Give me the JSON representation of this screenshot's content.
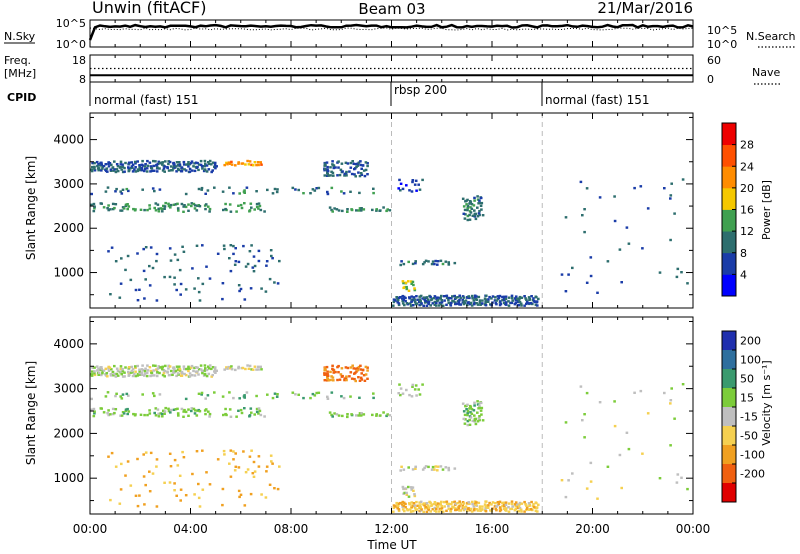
{
  "header": {
    "radar": "Unwin (fitACF)",
    "beam": "Beam 03",
    "date": "21/Mar/2016"
  },
  "noise_panel": {
    "left_label": "N.Sky",
    "left_ticks": [
      "10^5",
      "10^0"
    ],
    "right_ticks": [
      "10^5",
      "10^0"
    ],
    "right_label": "N.Search"
  },
  "freq_panel": {
    "left_label_top": "Freq.",
    "left_label_bottom": "[MHz]",
    "left_ticks": [
      "18",
      "8"
    ],
    "right_ticks": [
      "60",
      "0"
    ],
    "right_label": "Nave",
    "freq_level_mhz": 10.5,
    "nave_level": 30
  },
  "cpid": {
    "label": "CPID",
    "segments": [
      {
        "name": "normal (fast) 151",
        "start_h": 0,
        "end_h": 12
      },
      {
        "name": "rbsp 200",
        "start_h": 12,
        "end_h": 18
      },
      {
        "name": "normal (fast) 151",
        "start_h": 18,
        "end_h": 24
      }
    ]
  },
  "axes": {
    "ylabel": "Slant Range [km]",
    "xlabel": "Time UT",
    "y_ticks": [
      "1000",
      "2000",
      "3000",
      "4000"
    ],
    "x_ticks": [
      "00:00",
      "04:00",
      "08:00",
      "12:00",
      "16:00",
      "20:00",
      "00:00"
    ]
  },
  "power_colorbar": {
    "label": "Power [dB]",
    "ticks": [
      "4",
      "8",
      "12",
      "16",
      "20",
      "24",
      "28"
    ],
    "colors": [
      "#0000ff",
      "#1a3ca8",
      "#2d6e6e",
      "#40a050",
      "#f5c800",
      "#ff8c00",
      "#ff5000",
      "#ee0000"
    ]
  },
  "velocity_colorbar": {
    "label": "Velocity [m s⁻¹]",
    "ticks": [
      "200",
      "100",
      "50",
      "15",
      "-15",
      "-50",
      "-100",
      "-200"
    ],
    "colors": [
      "#1f2fae",
      "#2e6f9e",
      "#3a9a6e",
      "#7ccc3a",
      "#bfbfbf",
      "#f5d050",
      "#f0a020",
      "#f06010",
      "#e00000"
    ]
  },
  "chart_data": [
    {
      "type": "heatmap",
      "panel": "power",
      "xlabel": "Time UT",
      "ylabel": "Slant Range [km]",
      "xlim": [
        0,
        24
      ],
      "ylim": [
        200,
        4600
      ],
      "colorbar": "Power [dB]",
      "colorbar_range": [
        0,
        32
      ],
      "regions": [
        {
          "x": [
            0,
            5
          ],
          "y": [
            3250,
            3500
          ],
          "value": 8,
          "density": 0.8
        },
        {
          "x": [
            5.3,
            6.8
          ],
          "y": [
            3400,
            3500
          ],
          "value": 22,
          "density": 0.8
        },
        {
          "x": [
            0,
            7
          ],
          "y": [
            2350,
            2550
          ],
          "value": 12,
          "density": 0.35
        },
        {
          "x": [
            0,
            11.9
          ],
          "y": [
            2750,
            2900
          ],
          "value": 10,
          "density": 0.2
        },
        {
          "x": [
            9.2,
            11
          ],
          "y": [
            3150,
            3500
          ],
          "value": 8,
          "density": 0.55
        },
        {
          "x": [
            9.5,
            11.9
          ],
          "y": [
            2350,
            2450
          ],
          "value": 12,
          "density": 0.6
        },
        {
          "x": [
            0.5,
            7.5
          ],
          "y": [
            1000,
            1600
          ],
          "value": 8,
          "density": 0.07
        },
        {
          "x": [
            0.5,
            7.5
          ],
          "y": [
            350,
            900
          ],
          "value": 8,
          "density": 0.05
        },
        {
          "x": [
            12,
            17.8
          ],
          "y": [
            230,
            460
          ],
          "value": 8,
          "density": 0.85
        },
        {
          "x": [
            14.8,
            15.6
          ],
          "y": [
            2150,
            2700
          ],
          "value": 10,
          "density": 0.5
        },
        {
          "x": [
            12.2,
            13.2
          ],
          "y": [
            2800,
            3100
          ],
          "value": 6,
          "density": 0.3
        },
        {
          "x": [
            12.3,
            14.5
          ],
          "y": [
            1150,
            1250
          ],
          "value": 10,
          "density": 0.4
        },
        {
          "x": [
            12.4,
            12.9
          ],
          "y": [
            550,
            800
          ],
          "value": 16,
          "density": 0.8
        },
        {
          "x": [
            18,
            23.8
          ],
          "y": [
            300,
            3100
          ],
          "value": 8,
          "density": 0.012
        }
      ]
    },
    {
      "type": "heatmap",
      "panel": "velocity",
      "xlabel": "Time UT",
      "ylabel": "Slant Range [km]",
      "xlim": [
        0,
        24
      ],
      "ylim": [
        200,
        4600
      ],
      "colorbar": "Velocity [m s⁻¹]",
      "colorbar_range": [
        -200,
        200
      ],
      "regions": [
        {
          "x": [
            0,
            5
          ],
          "y": [
            3250,
            3500
          ],
          "value": 5,
          "density": 0.8
        },
        {
          "x": [
            5.3,
            6.8
          ],
          "y": [
            3400,
            3500
          ],
          "value": -5,
          "density": 0.8
        },
        {
          "x": [
            0,
            7
          ],
          "y": [
            2350,
            2550
          ],
          "value": 30,
          "density": 0.35
        },
        {
          "x": [
            0,
            11.9
          ],
          "y": [
            2750,
            2900
          ],
          "value": 40,
          "density": 0.2
        },
        {
          "x": [
            9.2,
            11
          ],
          "y": [
            3150,
            3500
          ],
          "value": -110,
          "density": 0.55
        },
        {
          "x": [
            9.5,
            11.9
          ],
          "y": [
            2350,
            2450
          ],
          "value": 30,
          "density": 0.6
        },
        {
          "x": [
            0.5,
            7.5
          ],
          "y": [
            1000,
            1600
          ],
          "value": -60,
          "density": 0.07
        },
        {
          "x": [
            0.5,
            7.5
          ],
          "y": [
            350,
            900
          ],
          "value": -60,
          "density": 0.05
        },
        {
          "x": [
            12,
            17.8
          ],
          "y": [
            230,
            460
          ],
          "value": -40,
          "density": 0.85
        },
        {
          "x": [
            14.8,
            15.6
          ],
          "y": [
            2150,
            2700
          ],
          "value": 30,
          "density": 0.5
        },
        {
          "x": [
            12.2,
            13.2
          ],
          "y": [
            2800,
            3100
          ],
          "value": 20,
          "density": 0.3
        },
        {
          "x": [
            12.3,
            14.5
          ],
          "y": [
            1150,
            1250
          ],
          "value": 0,
          "density": 0.4
        },
        {
          "x": [
            12.4,
            12.9
          ],
          "y": [
            550,
            800
          ],
          "value": 0,
          "density": 0.8
        },
        {
          "x": [
            18,
            23.8
          ],
          "y": [
            300,
            3100
          ],
          "value": 0,
          "density": 0.012
        }
      ]
    }
  ]
}
